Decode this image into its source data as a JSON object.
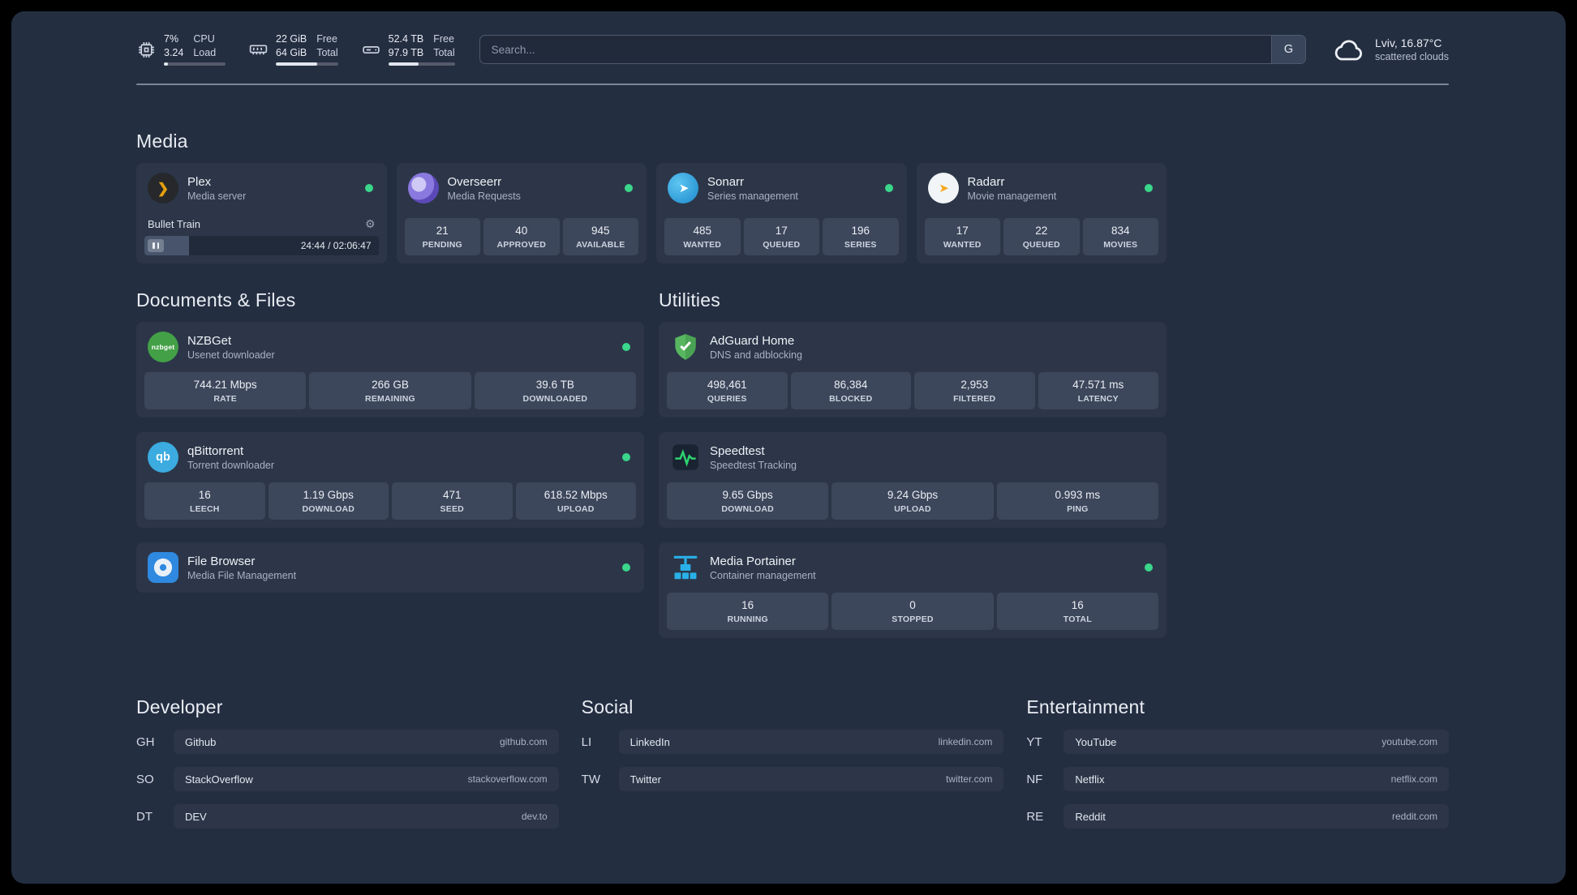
{
  "colors": {
    "status_online": "#3ad68b",
    "accent_card": "#2c3648",
    "background": "#242e41"
  },
  "glyphs": {
    "plex_chevron": "❯",
    "gear": "⚙",
    "sonarr_arrow": "➤",
    "radarr_arrow": "➤",
    "qbittorrent": "qb",
    "nzbget": "nzbget"
  },
  "topbar": {
    "cpu": {
      "percent": "7%",
      "load": "3.24",
      "label1": "CPU",
      "label2": "Load",
      "bar_pct": 7
    },
    "memory": {
      "free": "22 GiB",
      "total": "64 GiB",
      "label1": "Free",
      "label2": "Total",
      "bar_pct": 66
    },
    "disk": {
      "free": "52.4 TB",
      "total": "97.9 TB",
      "label1": "Free",
      "label2": "Total",
      "bar_pct": 46
    },
    "search": {
      "placeholder": "Search...",
      "provider_button": "G"
    },
    "weather": {
      "location": "Lviv, 16.87°C",
      "condition": "scattered clouds"
    }
  },
  "groups": {
    "media": {
      "title": "Media",
      "plex": {
        "name": "Plex",
        "desc": "Media server",
        "now_playing": "Bullet Train",
        "time": "24:44 / 02:06:47",
        "progress_pct": 19
      },
      "overseerr": {
        "name": "Overseerr",
        "desc": "Media Requests",
        "stats": [
          {
            "value": "21",
            "label": "PENDING"
          },
          {
            "value": "40",
            "label": "APPROVED"
          },
          {
            "value": "945",
            "label": "AVAILABLE"
          }
        ]
      },
      "sonarr": {
        "name": "Sonarr",
        "desc": "Series management",
        "stats": [
          {
            "value": "485",
            "label": "WANTED"
          },
          {
            "value": "17",
            "label": "QUEUED"
          },
          {
            "value": "196",
            "label": "SERIES"
          }
        ]
      },
      "radarr": {
        "name": "Radarr",
        "desc": "Movie management",
        "stats": [
          {
            "value": "17",
            "label": "WANTED"
          },
          {
            "value": "22",
            "label": "QUEUED"
          },
          {
            "value": "834",
            "label": "MOVIES"
          }
        ]
      }
    },
    "documents": {
      "title": "Documents & Files",
      "nzbget": {
        "name": "NZBGet",
        "desc": "Usenet downloader",
        "stats": [
          {
            "value": "744.21 Mbps",
            "label": "RATE"
          },
          {
            "value": "266 GB",
            "label": "REMAINING"
          },
          {
            "value": "39.6 TB",
            "label": "DOWNLOADED"
          }
        ]
      },
      "qbittorrent": {
        "name": "qBittorrent",
        "desc": "Torrent downloader",
        "stats": [
          {
            "value": "16",
            "label": "LEECH"
          },
          {
            "value": "1.19 Gbps",
            "label": "DOWNLOAD"
          },
          {
            "value": "471",
            "label": "SEED"
          },
          {
            "value": "618.52 Mbps",
            "label": "UPLOAD"
          }
        ]
      },
      "filebrowser": {
        "name": "File Browser",
        "desc": "Media File Management"
      }
    },
    "utilities": {
      "title": "Utilities",
      "adguard": {
        "name": "AdGuard Home",
        "desc": "DNS and adblocking",
        "stats": [
          {
            "value": "498,461",
            "label": "QUERIES"
          },
          {
            "value": "86,384",
            "label": "BLOCKED"
          },
          {
            "value": "2,953",
            "label": "FILTERED"
          },
          {
            "value": "47.571 ms",
            "label": "LATENCY"
          }
        ]
      },
      "speedtest": {
        "name": "Speedtest",
        "desc": "Speedtest Tracking",
        "stats": [
          {
            "value": "9.65 Gbps",
            "label": "DOWNLOAD"
          },
          {
            "value": "9.24 Gbps",
            "label": "UPLOAD"
          },
          {
            "value": "0.993 ms",
            "label": "PING"
          }
        ]
      },
      "portainer": {
        "name": "Media Portainer",
        "desc": "Container management",
        "stats": [
          {
            "value": "16",
            "label": "RUNNING"
          },
          {
            "value": "0",
            "label": "STOPPED"
          },
          {
            "value": "16",
            "label": "TOTAL"
          }
        ]
      }
    },
    "developer": {
      "title": "Developer",
      "links": [
        {
          "abbr": "GH",
          "name": "Github",
          "url": "github.com"
        },
        {
          "abbr": "SO",
          "name": "StackOverflow",
          "url": "stackoverflow.com"
        },
        {
          "abbr": "DT",
          "name": "DEV",
          "url": "dev.to"
        }
      ]
    },
    "social": {
      "title": "Social",
      "links": [
        {
          "abbr": "LI",
          "name": "LinkedIn",
          "url": "linkedin.com"
        },
        {
          "abbr": "TW",
          "name": "Twitter",
          "url": "twitter.com"
        }
      ]
    },
    "entertainment": {
      "title": "Entertainment",
      "links": [
        {
          "abbr": "YT",
          "name": "YouTube",
          "url": "youtube.com"
        },
        {
          "abbr": "NF",
          "name": "Netflix",
          "url": "netflix.com"
        },
        {
          "abbr": "RE",
          "name": "Reddit",
          "url": "reddit.com"
        }
      ]
    }
  }
}
